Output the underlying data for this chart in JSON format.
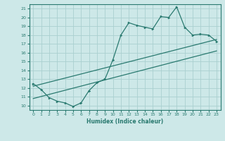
{
  "xlabel": "Humidex (Indice chaleur)",
  "xlim": [
    -0.5,
    23.5
  ],
  "ylim": [
    9.5,
    21.5
  ],
  "yticks": [
    10,
    11,
    12,
    13,
    14,
    15,
    16,
    17,
    18,
    19,
    20,
    21
  ],
  "xticks": [
    0,
    1,
    2,
    3,
    4,
    5,
    6,
    7,
    8,
    9,
    10,
    11,
    12,
    13,
    14,
    15,
    16,
    17,
    18,
    19,
    20,
    21,
    22,
    23
  ],
  "bg_color": "#cde8e8",
  "grid_color": "#aad0d0",
  "line_color": "#2a7a70",
  "main_line": {
    "x": [
      0,
      1,
      2,
      3,
      4,
      5,
      6,
      7,
      8,
      9,
      10,
      11,
      12,
      13,
      14,
      15,
      16,
      17,
      18,
      19,
      20,
      21,
      22,
      23
    ],
    "y": [
      12.5,
      11.8,
      10.9,
      10.5,
      10.3,
      9.9,
      10.3,
      11.7,
      12.6,
      13.0,
      15.2,
      18.0,
      19.4,
      19.1,
      18.9,
      18.7,
      20.1,
      20.0,
      21.2,
      18.9,
      18.0,
      18.1,
      18.0,
      17.3
    ]
  },
  "line2": {
    "x": [
      0,
      23
    ],
    "y": [
      12.2,
      17.5
    ]
  },
  "line3": {
    "x": [
      0,
      23
    ],
    "y": [
      10.8,
      16.2
    ]
  }
}
